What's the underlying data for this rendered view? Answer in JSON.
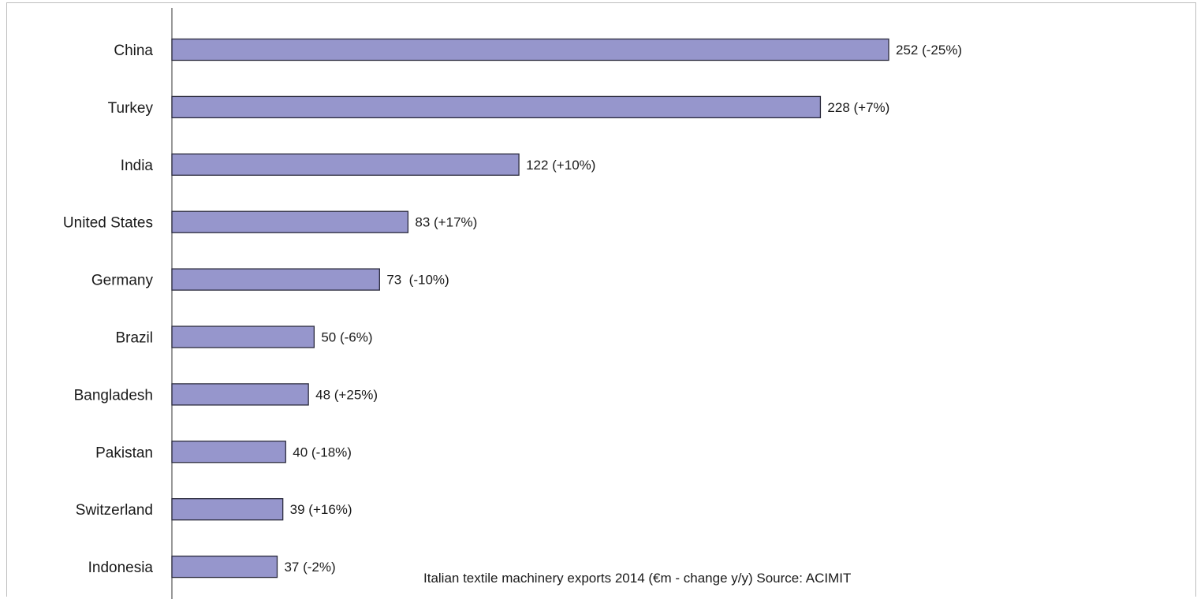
{
  "chart_data": {
    "type": "bar",
    "orientation": "horizontal",
    "categories": [
      "China",
      "Turkey",
      "India",
      "United States",
      "Germany",
      "Brazil",
      "Bangladesh",
      "Pakistan",
      "Switzerland",
      "Indonesia"
    ],
    "values": [
      252,
      228,
      122,
      83,
      73,
      50,
      48,
      40,
      39,
      37
    ],
    "data_labels": [
      "252 (-25%)",
      "228 (+7%)",
      "122 (+10%)",
      "83 (+17%)",
      "73  (-10%)",
      "50 (-6%)",
      "48 (+25%)",
      "40 (-18%)",
      "39 (+16%)",
      "37 (-2%)"
    ],
    "title": "",
    "caption": "Italian textile machinery exports 2014 (€m - change y/y) Source: ACIMIT",
    "xlabel": "",
    "ylabel": "",
    "xlim": [
      0,
      252
    ],
    "grid": false,
    "legend": "none",
    "bar_color": "#9696cc",
    "bar_outline_color": "#2b2b3d"
  }
}
